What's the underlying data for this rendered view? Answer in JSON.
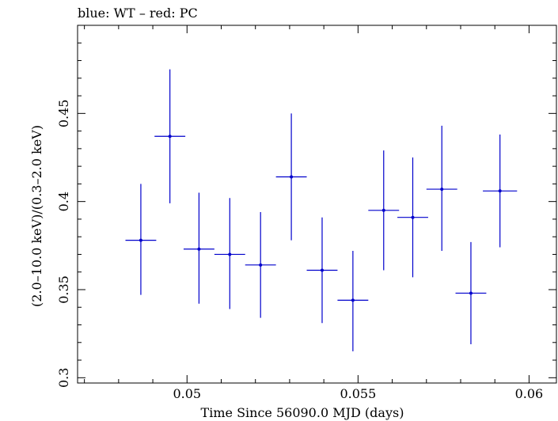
{
  "chart_data": {
    "type": "scatter",
    "title": "blue: WT – red: PC",
    "xlabel": "Time Since 56090.0 MJD (days)",
    "ylabel": "(2.0–10.0 keV)/(0.3–2.0 keV)",
    "xlim": [
      0.0468,
      0.0608
    ],
    "ylim": [
      0.297,
      0.5
    ],
    "x_ticks": [
      0.05,
      0.055,
      0.06
    ],
    "x_tick_labels": [
      "0.05",
      "0.055",
      "0.06"
    ],
    "y_ticks": [
      0.3,
      0.35,
      0.4,
      0.45
    ],
    "y_tick_labels": [
      "0.3",
      "0.35",
      "0.4",
      "0.45"
    ],
    "grid": false,
    "series": [
      {
        "color": "#0000cc",
        "points": [
          {
            "x": 0.04865,
            "xerr": 0.00045,
            "y": 0.378,
            "yerr_lo": 0.031,
            "yerr_hi": 0.032
          },
          {
            "x": 0.0495,
            "xerr": 0.00045,
            "y": 0.437,
            "yerr_lo": 0.038,
            "yerr_hi": 0.038
          },
          {
            "x": 0.05035,
            "xerr": 0.00045,
            "y": 0.373,
            "yerr_lo": 0.031,
            "yerr_hi": 0.032
          },
          {
            "x": 0.05125,
            "xerr": 0.00045,
            "y": 0.37,
            "yerr_lo": 0.031,
            "yerr_hi": 0.032
          },
          {
            "x": 0.05215,
            "xerr": 0.00045,
            "y": 0.364,
            "yerr_lo": 0.03,
            "yerr_hi": 0.03
          },
          {
            "x": 0.05305,
            "xerr": 0.00045,
            "y": 0.414,
            "yerr_lo": 0.036,
            "yerr_hi": 0.036
          },
          {
            "x": 0.05395,
            "xerr": 0.00045,
            "y": 0.361,
            "yerr_lo": 0.03,
            "yerr_hi": 0.03
          },
          {
            "x": 0.05485,
            "xerr": 0.00045,
            "y": 0.344,
            "yerr_lo": 0.029,
            "yerr_hi": 0.028
          },
          {
            "x": 0.05575,
            "xerr": 0.00045,
            "y": 0.395,
            "yerr_lo": 0.034,
            "yerr_hi": 0.034
          },
          {
            "x": 0.0566,
            "xerr": 0.00045,
            "y": 0.391,
            "yerr_lo": 0.034,
            "yerr_hi": 0.034
          },
          {
            "x": 0.05745,
            "xerr": 0.00045,
            "y": 0.407,
            "yerr_lo": 0.035,
            "yerr_hi": 0.036
          },
          {
            "x": 0.0583,
            "xerr": 0.00045,
            "y": 0.348,
            "yerr_lo": 0.029,
            "yerr_hi": 0.029
          },
          {
            "x": 0.05915,
            "xerr": 0.0005,
            "y": 0.406,
            "yerr_lo": 0.032,
            "yerr_hi": 0.032
          }
        ]
      }
    ]
  }
}
